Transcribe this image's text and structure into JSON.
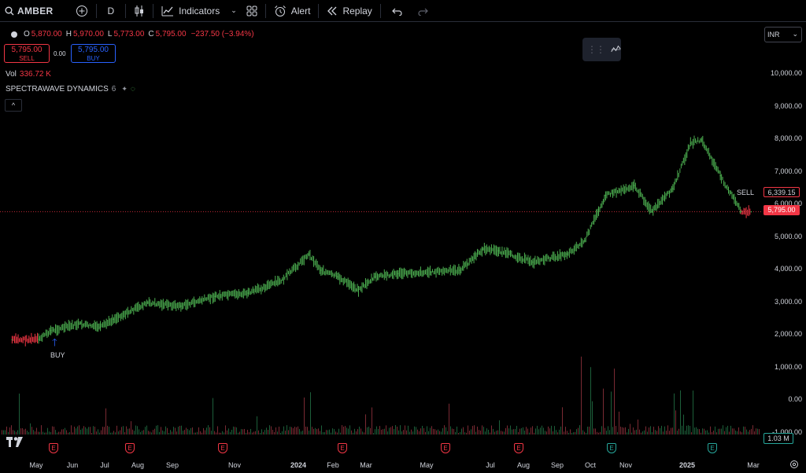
{
  "toolbar": {
    "symbol": "AMBER",
    "interval": "D",
    "indicators_label": "Indicators",
    "alert_label": "Alert",
    "replay_label": "Replay"
  },
  "legend": {
    "o_label": "O",
    "o_value": "5,870.00",
    "h_label": "H",
    "h_value": "5,970.00",
    "l_label": "L",
    "l_value": "5,773.00",
    "c_label": "C",
    "c_value": "5,795.00",
    "change": "−237.50 (−3.94%)"
  },
  "trade": {
    "sell_price": "5,795.00",
    "sell_label": "SELL",
    "spread": "0.00",
    "buy_price": "5,795.00",
    "buy_label": "BUY"
  },
  "volume": {
    "label": "Vol",
    "value": "336.72 K"
  },
  "indicator": {
    "name": "SPECTRAWAVE DYNAMICS",
    "param": "6"
  },
  "currency": "INR",
  "price_tags": {
    "high_marker": "6,339.15",
    "last": "5,795.00"
  },
  "volume_tag": "1.03 M",
  "annotations": {
    "buy": "BUY",
    "sell": "SELL"
  },
  "y_ticks": [
    "10,000.00",
    "9,000.00",
    "8,000.00",
    "7,000.00",
    "6,000.00",
    "5,000.00",
    "4,000.00",
    "3,000.00",
    "2,000.00",
    "1,000.00",
    "0.00",
    "-1,000.00"
  ],
  "x_ticks": [
    "May",
    "Jun",
    "Jul",
    "Aug",
    "Sep",
    "Nov",
    "2024",
    "Feb",
    "Mar",
    "May",
    "Jul",
    "Aug",
    "Sep",
    "Oct",
    "Nov",
    "2025",
    "Mar"
  ],
  "earnings_marker": "E",
  "colors": {
    "up": "#4caf50",
    "down": "#f23645",
    "accent": "#2962ff",
    "teal": "#26a69a"
  },
  "chart_data": {
    "type": "line",
    "title": "",
    "xlabel": "",
    "ylabel": "",
    "ylim": [
      -1000,
      10500
    ],
    "x": [
      "2023-05-01",
      "2023-05-25",
      "2023-06-05",
      "2023-07-01",
      "2023-07-20",
      "2023-08-01",
      "2023-09-01",
      "2023-10-01",
      "2023-11-01",
      "2023-12-01",
      "2024-01-01",
      "2024-01-25",
      "2024-02-05",
      "2024-02-20",
      "2024-03-10",
      "2024-03-25",
      "2024-04-15",
      "2024-05-15",
      "2024-06-10",
      "2024-07-01",
      "2024-07-15",
      "2024-08-15",
      "2024-09-15",
      "2024-10-01",
      "2024-10-20",
      "2024-11-15",
      "2024-12-01",
      "2024-12-20",
      "2025-01-05",
      "2025-01-15",
      "2025-02-01",
      "2025-02-20",
      "2025-03-01"
    ],
    "series": [
      {
        "values": [
          1870,
          1880,
          2150,
          2350,
          2250,
          2500,
          3000,
          2900,
          3200,
          3300,
          3700,
          4500,
          4000,
          3800,
          3400,
          3800,
          3900,
          3950,
          4000,
          4650,
          4600,
          4250,
          4500,
          4900,
          6300,
          6600,
          5800,
          6500,
          7900,
          8000,
          6900,
          5800,
          5795
        ]
      }
    ]
  }
}
